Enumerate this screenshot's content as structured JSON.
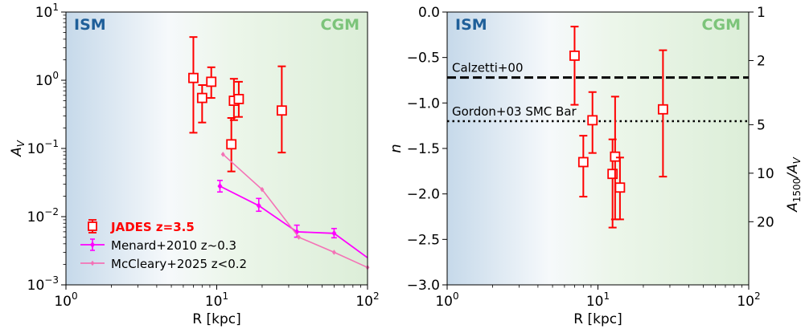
{
  "chart_data": [
    {
      "type": "scatter",
      "panel": "left",
      "xlabel": "R [kpc]",
      "ylabel": "A",
      "ylabel_sub": "V",
      "xscale": "log",
      "yscale": "log",
      "xlim": [
        1,
        100
      ],
      "ylim": [
        0.001,
        10
      ],
      "x_ticks": [
        {
          "value": 1,
          "base": "10",
          "exp": "0"
        },
        {
          "value": 10,
          "base": "10",
          "exp": "1"
        },
        {
          "value": 100,
          "base": "10",
          "exp": "2"
        }
      ],
      "y_ticks": [
        {
          "value": 0.001,
          "base": "10",
          "exp": "−3"
        },
        {
          "value": 0.01,
          "base": "10",
          "exp": "−2"
        },
        {
          "value": 0.1,
          "base": "10",
          "exp": "−1"
        },
        {
          "value": 1,
          "base": "10",
          "exp": "0"
        },
        {
          "value": 10,
          "base": "10",
          "exp": "1"
        }
      ],
      "region_labels": [
        {
          "text": "ISM",
          "color": "#1f5f99"
        },
        {
          "text": "CGM",
          "color": "#7cc47a"
        }
      ],
      "legend": {
        "position": "lower-left",
        "entries": [
          {
            "label": "JADES z=3.5",
            "color": "#ff0000",
            "bold": true
          },
          {
            "label": "Menard+2010 z~0.3",
            "color": "#ff00ff",
            "bold": false
          },
          {
            "label": "McCleary+2025 z<0.2",
            "color": "#f472b6",
            "bold": false
          }
        ]
      },
      "series": [
        {
          "name": "JADES z=3.5",
          "color": "#ff0000",
          "marker": "square-open",
          "points": [
            {
              "x": 7.0,
              "y": 1.08,
              "ylo": 0.17,
              "yhi": 4.3
            },
            {
              "x": 8.0,
              "y": 0.55,
              "ylo": 0.24,
              "yhi": 0.85
            },
            {
              "x": 9.2,
              "y": 0.95,
              "ylo": 0.55,
              "yhi": 1.55
            },
            {
              "x": 12.5,
              "y": 0.115,
              "ylo": 0.046,
              "yhi": 0.28
            },
            {
              "x": 13.0,
              "y": 0.5,
              "ylo": 0.26,
              "yhi": 1.05
            },
            {
              "x": 14.0,
              "y": 0.53,
              "ylo": 0.29,
              "yhi": 0.95
            },
            {
              "x": 27.0,
              "y": 0.36,
              "ylo": 0.087,
              "yhi": 1.6
            }
          ]
        },
        {
          "name": "Menard+2010 z~0.3",
          "color": "#ff00ff",
          "marker": "diamond",
          "points": [
            {
              "x": 10.5,
              "y": 0.028,
              "ylo": 0.023,
              "yhi": 0.034
            },
            {
              "x": 19.0,
              "y": 0.0145,
              "ylo": 0.012,
              "yhi": 0.0185
            },
            {
              "x": 34.0,
              "y": 0.006,
              "ylo": 0.005,
              "yhi": 0.0075
            },
            {
              "x": 60.0,
              "y": 0.0057,
              "ylo": 0.0049,
              "yhi": 0.0067
            },
            {
              "x": 100.0,
              "y": 0.0025
            }
          ]
        },
        {
          "name": "McCleary+2025 z<0.2",
          "color": "#f472b6",
          "marker": "diamond-small",
          "points": [
            {
              "x": 11.0,
              "y": 0.082
            },
            {
              "x": 20.0,
              "y": 0.025
            },
            {
              "x": 35.0,
              "y": 0.005
            },
            {
              "x": 60.0,
              "y": 0.003
            },
            {
              "x": 100.0,
              "y": 0.0018
            }
          ]
        }
      ]
    },
    {
      "type": "scatter",
      "panel": "right",
      "xlabel": "R [kpc]",
      "ylabel": "n",
      "y2label": "A",
      "y2label_sub": "1500",
      "y2label_suffix": "/A",
      "y2label_suffix_sub": "V",
      "xscale": "log",
      "xlim": [
        1,
        100
      ],
      "ylim": [
        -3.0,
        0.0
      ],
      "x_ticks": [
        {
          "value": 1,
          "base": "10",
          "exp": "0"
        },
        {
          "value": 10,
          "base": "10",
          "exp": "1"
        },
        {
          "value": 100,
          "base": "10",
          "exp": "2"
        }
      ],
      "y_ticks": [
        {
          "value": 0.0,
          "label": "0.0"
        },
        {
          "value": -0.5,
          "label": "−0.5"
        },
        {
          "value": -1.0,
          "label": "−1.0"
        },
        {
          "value": -1.5,
          "label": "−1.5"
        },
        {
          "value": -2.0,
          "label": "−2.0"
        },
        {
          "value": -2.5,
          "label": "−2.5"
        },
        {
          "value": -3.0,
          "label": "−3.0"
        }
      ],
      "y2_ticks": [
        {
          "ratio": 1,
          "label": "1"
        },
        {
          "ratio": 2,
          "label": "2"
        },
        {
          "ratio": 5,
          "label": "5"
        },
        {
          "ratio": 10,
          "label": "10"
        },
        {
          "ratio": 20,
          "label": "20"
        }
      ],
      "region_labels": [
        {
          "text": "ISM",
          "color": "#1f5f99"
        },
        {
          "text": "CGM",
          "color": "#7cc47a"
        }
      ],
      "reference_lines": [
        {
          "label": "Calzetti+00",
          "y": -0.72,
          "style": "dashed"
        },
        {
          "label": "Gordon+03 SMC Bar",
          "y": -1.2,
          "style": "dotted"
        }
      ],
      "series": [
        {
          "name": "JADES z=3.5",
          "color": "#ff0000",
          "marker": "square-open",
          "points": [
            {
              "x": 7.0,
              "y": -0.48,
              "ylo": -1.02,
              "yhi": -0.16
            },
            {
              "x": 8.0,
              "y": -1.65,
              "ylo": -2.03,
              "yhi": -1.36
            },
            {
              "x": 9.2,
              "y": -1.19,
              "ylo": -1.55,
              "yhi": -0.88
            },
            {
              "x": 12.5,
              "y": -1.78,
              "ylo": -2.37,
              "yhi": -1.4
            },
            {
              "x": 13.0,
              "y": -1.59,
              "ylo": -2.28,
              "yhi": -0.93
            },
            {
              "x": 14.0,
              "y": -1.93,
              "ylo": -2.28,
              "yhi": -1.6
            },
            {
              "x": 27.0,
              "y": -1.07,
              "ylo": -1.81,
              "yhi": -0.42
            }
          ]
        }
      ]
    }
  ]
}
